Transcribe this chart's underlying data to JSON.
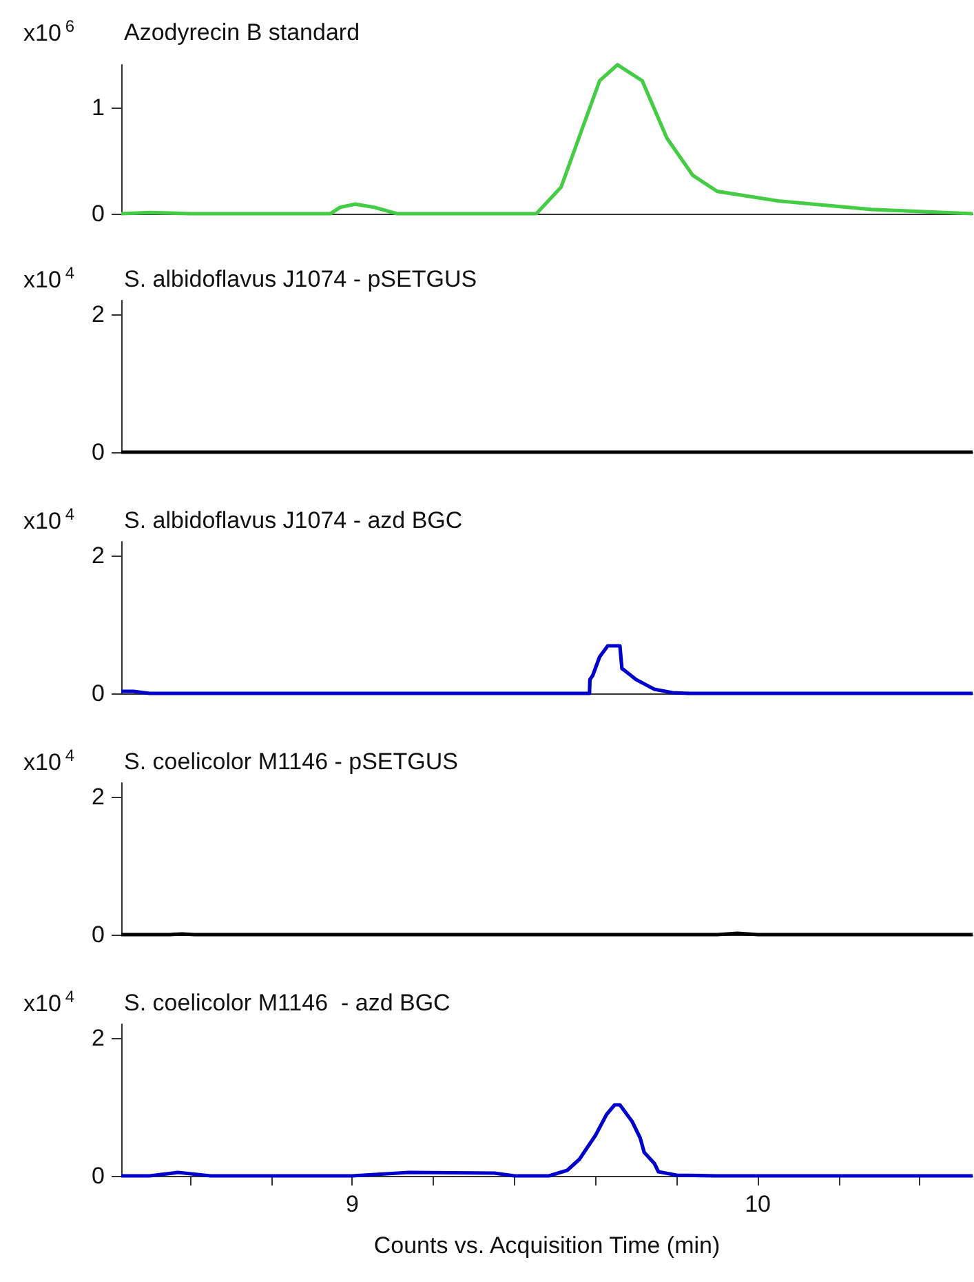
{
  "chart_data": [
    {
      "type": "line",
      "title": "Azodyrecin B standard",
      "ylabel": "x10$^{6}$",
      "xlim": [
        8.43,
        10.53
      ],
      "ylim": [
        0,
        1.4
      ],
      "yticks": [
        0,
        1
      ],
      "tick_labels": "y",
      "series": [
        {
          "color": "#44cc44",
          "x": [
            8.43,
            8.5,
            8.6,
            8.946,
            8.97,
            9.007,
            9.054,
            9.11,
            9.454,
            9.515,
            9.57,
            9.61,
            9.654,
            9.715,
            9.776,
            9.84,
            9.9,
            10.05,
            10.28,
            10.53
          ],
          "values": [
            0,
            0.01,
            0,
            0,
            0.06,
            0.09,
            0.06,
            0,
            0,
            0.25,
            0.83,
            1.25,
            1.4,
            1.25,
            0.71,
            0.36,
            0.21,
            0.12,
            0.04,
            0
          ]
        }
      ]
    },
    {
      "type": "line",
      "title": "S. albidoflavus J1074 - pSETGUS",
      "ylabel": "x10$^{4}$",
      "xlim": [
        8.43,
        10.53
      ],
      "ylim": [
        0,
        2.2
      ],
      "yticks": [
        0,
        2
      ],
      "tick_labels": "y",
      "series": [
        {
          "color": "#000000",
          "x": [
            8.43,
            10.53
          ],
          "values": [
            0,
            0
          ]
        }
      ]
    },
    {
      "type": "line",
      "title": "S. albidoflavus J1074 - azd BGC",
      "ylabel": "x10$^{4}$",
      "xlim": [
        8.43,
        10.53
      ],
      "ylim": [
        0,
        2.2
      ],
      "yticks": [
        0,
        2
      ],
      "tick_labels": "y",
      "series": [
        {
          "color": "#0000cc",
          "x": [
            8.43,
            8.46,
            8.5,
            9.585,
            9.586,
            9.593,
            9.61,
            9.63,
            9.66,
            9.665,
            9.67,
            9.7,
            9.745,
            9.79,
            9.83,
            10.53
          ],
          "values": [
            0.03,
            0.03,
            0,
            0,
            0.2,
            0.26,
            0.53,
            0.69,
            0.69,
            0.36,
            0.34,
            0.2,
            0.06,
            0.01,
            0,
            0
          ]
        }
      ]
    },
    {
      "type": "line",
      "title": "S. coelicolor M1146 - pSETGUS",
      "ylabel": "x10$^{4}$",
      "xlim": [
        8.43,
        10.53
      ],
      "ylim": [
        0,
        2.2
      ],
      "yticks": [
        0,
        2
      ],
      "tick_labels": "y",
      "series": [
        {
          "color": "#000000",
          "x": [
            8.43,
            8.55,
            8.58,
            8.61,
            9.9,
            9.95,
            10.0,
            10.53
          ],
          "values": [
            0,
            0,
            0.01,
            0,
            0,
            0.02,
            0,
            0
          ]
        }
      ]
    },
    {
      "type": "line",
      "title": "S. coelicolor M1146  - azd BGC",
      "ylabel": "x10$^{4}$",
      "xlabel": "Counts vs. Acquisition Time (min)",
      "xlim": [
        8.43,
        10.53
      ],
      "ylim": [
        0,
        2.2
      ],
      "yticks": [
        0,
        2
      ],
      "xticks": [
        {
          "value": 8.6,
          "label": null
        },
        {
          "value": 8.8,
          "label": null
        },
        9,
        {
          "value": 9.2,
          "label": null
        },
        {
          "value": 9.4,
          "label": null
        },
        {
          "value": 9.6,
          "label": null
        },
        {
          "value": 9.8,
          "label": null
        },
        10,
        {
          "value": 10.2,
          "label": null
        },
        {
          "value": 10.4,
          "label": null
        }
      ],
      "series": [
        {
          "color": "#0000cc",
          "x": [
            8.43,
            8.5,
            8.57,
            8.65,
            9.0,
            9.14,
            9.35,
            9.4,
            9.485,
            9.53,
            9.56,
            9.6,
            9.627,
            9.647,
            9.66,
            9.69,
            9.71,
            9.72,
            9.745,
            9.755,
            9.8,
            9.9,
            10.53
          ],
          "values": [
            0,
            0,
            0.05,
            0,
            0,
            0.05,
            0.04,
            0,
            0,
            0.08,
            0.24,
            0.59,
            0.89,
            1.03,
            1.03,
            0.79,
            0.55,
            0.34,
            0.18,
            0.06,
            0.01,
            0,
            0
          ]
        }
      ]
    }
  ]
}
